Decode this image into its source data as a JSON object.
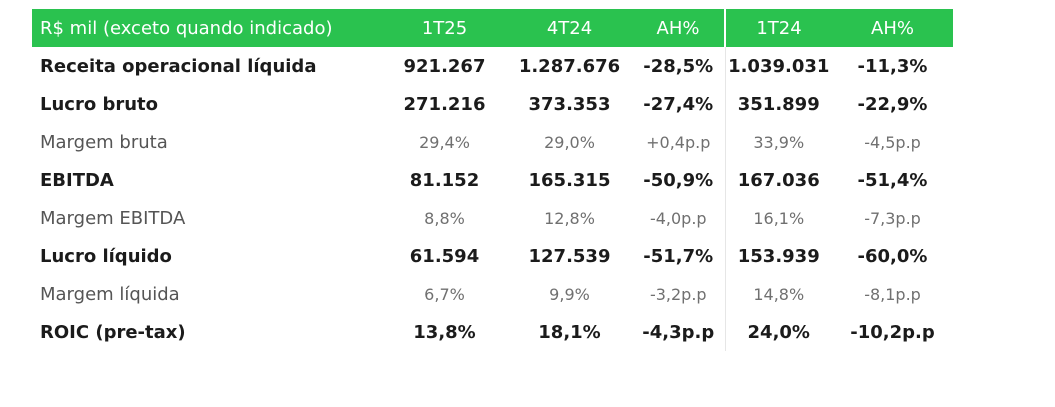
{
  "header": {
    "label": "R$ mil (exceto quando indicado)",
    "columns": [
      "1T25",
      "4T24",
      "AH%",
      "1T24",
      "AH%"
    ]
  },
  "rows": [
    {
      "label": "Receita operacional líquida",
      "values": [
        "921.267",
        "1.287.676",
        "-28,5%",
        "1.039.031",
        "-11,3%"
      ]
    },
    {
      "label": "Lucro bruto",
      "values": [
        "271.216",
        "373.353",
        "-27,4%",
        "351.899",
        "-22,9%"
      ]
    },
    {
      "label": "Margem bruta",
      "values": [
        "29,4%",
        "29,0%",
        "+0,4p.p",
        "33,9%",
        "-4,5p.p"
      ]
    },
    {
      "label": "EBITDA",
      "values": [
        "81.152",
        "165.315",
        "-50,9%",
        "167.036",
        "-51,4%"
      ]
    },
    {
      "label": "Margem EBITDA",
      "values": [
        "8,8%",
        "12,8%",
        "-4,0p.p",
        "16,1%",
        "-7,3p.p"
      ]
    },
    {
      "label": "Lucro líquido",
      "values": [
        "61.594",
        "127.539",
        "-51,7%",
        "153.939",
        "-60,0%"
      ]
    },
    {
      "label": "Margem líquida",
      "values": [
        "6,7%",
        "9,9%",
        "-3,2p.p",
        "14,8%",
        "-8,1p.p"
      ]
    },
    {
      "label": "ROIC (pre-tax)",
      "values": [
        "13,8%",
        "18,1%",
        "-4,3p.p",
        "24,0%",
        "-10,2p.p"
      ]
    }
  ],
  "colors": {
    "header_background": "#2ac24f",
    "header_text": "#ffffff",
    "bold_text": "#1b1b1b",
    "light_text": "#707070"
  }
}
